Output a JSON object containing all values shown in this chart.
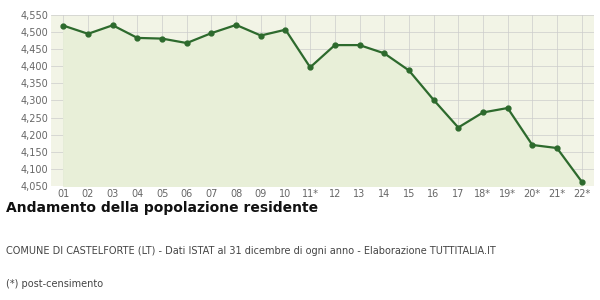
{
  "x_labels": [
    "01",
    "02",
    "03",
    "04",
    "05",
    "06",
    "07",
    "08",
    "09",
    "10",
    "11*",
    "12",
    "13",
    "14",
    "15",
    "16",
    "17",
    "18*",
    "19*",
    "20*",
    "21*",
    "22*"
  ],
  "y_values": [
    4519,
    4495,
    4520,
    4483,
    4481,
    4468,
    4497,
    4521,
    4490,
    4507,
    4397,
    4462,
    4462,
    4438,
    4388,
    4302,
    4221,
    4265,
    4278,
    4170,
    4161,
    4063
  ],
  "line_color": "#2d6a2d",
  "fill_color": "#e8efd8",
  "marker_size": 3.5,
  "line_width": 1.6,
  "ylim": [
    4050,
    4550
  ],
  "yticks": [
    4050,
    4100,
    4150,
    4200,
    4250,
    4300,
    4350,
    4400,
    4450,
    4500,
    4550
  ],
  "grid_color": "#cccccc",
  "background_color": "#f2f4e6",
  "title": "Andamento della popolazione residente",
  "subtitle": "COMUNE DI CASTELFORTE (LT) - Dati ISTAT al 31 dicembre di ogni anno - Elaborazione TUTTITALIA.IT",
  "footnote": "(*) post-censimento",
  "title_fontsize": 10,
  "subtitle_fontsize": 7,
  "footnote_fontsize": 7,
  "tick_fontsize": 7
}
